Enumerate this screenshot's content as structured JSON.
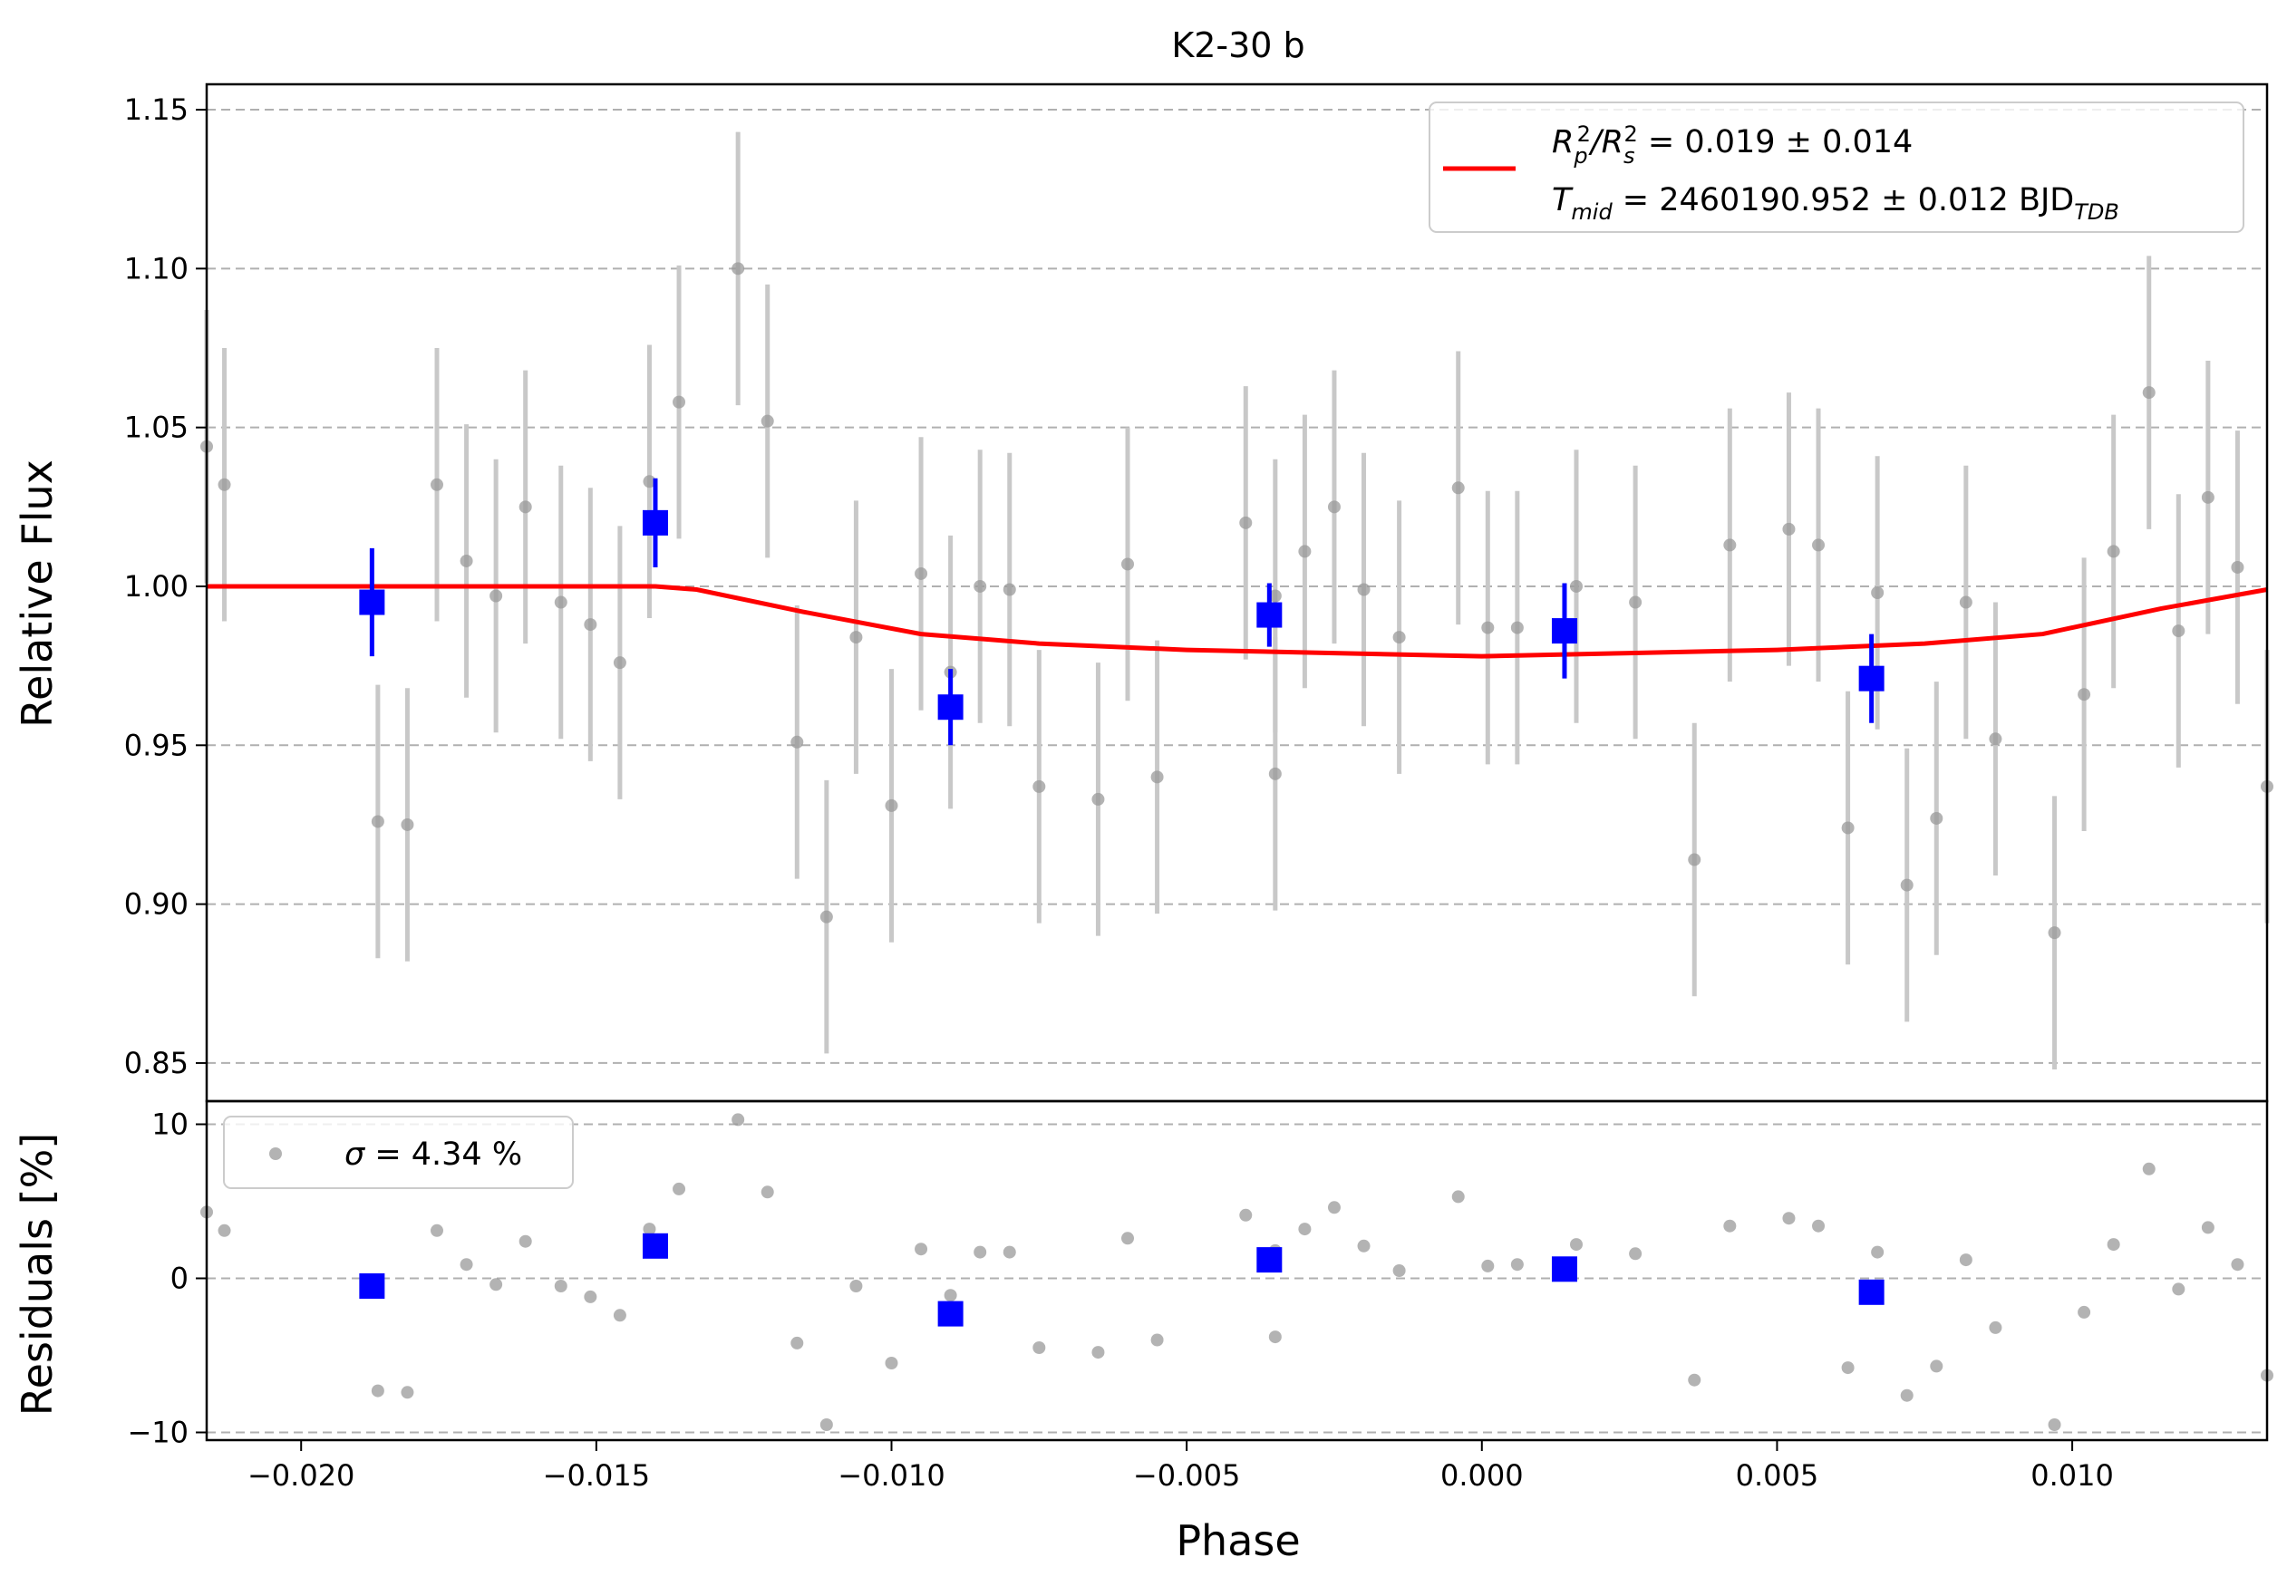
{
  "chart_data": [
    {
      "panel": "main",
      "type": "scatter",
      "title": "K2-30 b",
      "xlabel": "Phase",
      "ylabel": "Relative Flux",
      "xlim": [
        -0.0216,
        0.0133
      ],
      "ylim": [
        0.838,
        1.158
      ],
      "xticks": [
        "−0.020",
        "−0.015",
        "−0.010",
        "−0.005",
        "0.000",
        "0.005",
        "0.010"
      ],
      "xtick_values": [
        -0.02,
        -0.015,
        -0.01,
        -0.005,
        0.0,
        0.005,
        0.01
      ],
      "yticks": [
        "0.85",
        "0.90",
        "0.95",
        "1.00",
        "1.05",
        "1.10",
        "1.15"
      ],
      "ytick_values": [
        0.85,
        0.9,
        0.95,
        1.0,
        1.05,
        1.1,
        1.15
      ],
      "grid": "horizontal dashed",
      "legend": {
        "placement": "top-right",
        "line1_base": "R",
        "line1_sub1": "p",
        "line1_sup1": "2",
        "line1_slash": "/R",
        "line1_sub2": "s",
        "line1_sup2": "2",
        "line1_value": " = 0.019 ± 0.014",
        "line2_base": "T",
        "line2_sub": "mid",
        "line2_value": " = 2460190.952 ± 0.012 BJD",
        "line2_unit_sub": "TDB"
      },
      "colors": {
        "raw": "#999999",
        "raw_err": "#c8c8c8",
        "binned": "#0000ff",
        "model": "#ff0000",
        "grid": "#b0b0b0"
      },
      "raw_points": {
        "x": [
          -0.0216,
          -0.0213,
          -0.0187,
          -0.0182,
          -0.0177,
          -0.0172,
          -0.0167,
          -0.0162,
          -0.0156,
          -0.0151,
          -0.0146,
          -0.0141,
          -0.0136,
          -0.0126,
          -0.0121,
          -0.0116,
          -0.0111,
          -0.0106,
          -0.01,
          -0.0095,
          -0.009,
          -0.0085,
          -0.008,
          -0.0075,
          -0.0065,
          -0.006,
          -0.0055,
          -0.004,
          -0.0035,
          -0.0035,
          -0.003,
          -0.0025,
          -0.002,
          -0.0014,
          -0.0004,
          0.0001,
          0.0006,
          0.0016,
          0.0026,
          0.0036,
          0.0042,
          0.0052,
          0.0057,
          0.0062,
          0.0067,
          0.0072,
          0.0077,
          0.0082,
          0.0087,
          0.0097,
          0.0102,
          0.0107,
          0.0113,
          0.0118,
          0.0123,
          0.0128,
          0.0133
        ],
        "y": [
          1.044,
          1.032,
          0.926,
          0.925,
          1.032,
          1.008,
          0.997,
          1.025,
          0.995,
          0.988,
          0.976,
          1.033,
          1.058,
          1.1,
          1.052,
          0.951,
          0.896,
          0.984,
          0.931,
          1.004,
          0.973,
          1.0,
          0.999,
          0.937,
          0.933,
          1.007,
          0.94,
          1.02,
          0.997,
          0.941,
          1.011,
          1.025,
          0.999,
          0.984,
          1.031,
          0.987,
          0.987,
          1.0,
          0.995,
          0.914,
          1.013,
          1.018,
          1.013,
          0.924,
          0.998,
          0.906,
          0.927,
          0.995,
          0.952,
          0.891,
          0.966,
          1.011,
          1.061,
          0.986,
          1.028,
          1.006,
          0.937
        ],
        "err": 0.043
      },
      "binned_points": {
        "x": [
          -0.0188,
          -0.014,
          -0.009,
          -0.0036,
          0.0014,
          0.0066
        ],
        "y": [
          0.995,
          1.02,
          0.962,
          0.991,
          0.986,
          0.971
        ],
        "err": [
          0.017,
          0.014,
          0.012,
          0.01,
          0.015,
          0.014
        ]
      },
      "model": {
        "x": [
          -0.0216,
          -0.014,
          -0.0133,
          -0.0115,
          -0.0095,
          -0.0075,
          -0.005,
          -0.0025,
          0.0,
          0.0025,
          0.005,
          0.0075,
          0.0095,
          0.0115,
          0.0133
        ],
        "y": [
          1.0,
          1.0,
          0.999,
          0.992,
          0.985,
          0.982,
          0.98,
          0.979,
          0.978,
          0.979,
          0.98,
          0.982,
          0.985,
          0.993,
          0.999
        ]
      }
    },
    {
      "panel": "residuals",
      "type": "scatter",
      "xlabel": "Phase",
      "ylabel": "Residuals [%]",
      "xlim": [
        -0.0216,
        0.0133
      ],
      "ylim": [
        -10.5,
        11.5
      ],
      "yticks": [
        "−10",
        "0",
        "10"
      ],
      "ytick_values": [
        -10,
        0,
        10
      ],
      "legend": {
        "placement": "top-left",
        "sigma_symbol": "σ",
        "sigma_value": " = 4.34 %"
      },
      "raw_points": {
        "x": [
          -0.0216,
          -0.0213,
          -0.0187,
          -0.0182,
          -0.0177,
          -0.0172,
          -0.0167,
          -0.0162,
          -0.0156,
          -0.0151,
          -0.0146,
          -0.0141,
          -0.0136,
          -0.0126,
          -0.0121,
          -0.0116,
          -0.0111,
          -0.0106,
          -0.01,
          -0.0095,
          -0.009,
          -0.0085,
          -0.008,
          -0.0075,
          -0.0065,
          -0.006,
          -0.0055,
          -0.004,
          -0.0035,
          -0.0035,
          -0.003,
          -0.0025,
          -0.002,
          -0.0014,
          -0.0004,
          0.0001,
          0.0006,
          0.0016,
          0.0026,
          0.0036,
          0.0042,
          0.0052,
          0.0057,
          0.0062,
          0.0067,
          0.0072,
          0.0077,
          0.0082,
          0.0087,
          0.0097,
          0.0102,
          0.0107,
          0.0113,
          0.0118,
          0.0123,
          0.0128,
          0.0133
        ],
        "y": [
          4.3,
          3.1,
          -7.3,
          -7.4,
          3.1,
          0.9,
          -0.4,
          2.4,
          -0.5,
          -1.2,
          -2.4,
          3.2,
          5.8,
          10.3,
          5.6,
          -4.2,
          -9.5,
          -0.5,
          -5.5,
          1.9,
          -1.1,
          1.7,
          1.7,
          -4.5,
          -4.8,
          2.6,
          -4.0,
          4.1,
          1.8,
          -3.8,
          3.2,
          4.6,
          2.1,
          0.5,
          5.3,
          0.8,
          0.9,
          2.2,
          1.6,
          -6.6,
          3.4,
          3.9,
          3.4,
          -5.8,
          1.7,
          -7.6,
          -5.7,
          1.2,
          -3.2,
          -9.5,
          -2.2,
          2.2,
          7.1,
          -0.7,
          3.3,
          0.9,
          -6.3
        ]
      },
      "binned_points": {
        "x": [
          -0.0188,
          -0.014,
          -0.009,
          -0.0036,
          0.0014,
          0.0066
        ],
        "y": [
          -0.5,
          2.1,
          -2.3,
          1.2,
          0.6,
          -0.9
        ]
      }
    }
  ]
}
